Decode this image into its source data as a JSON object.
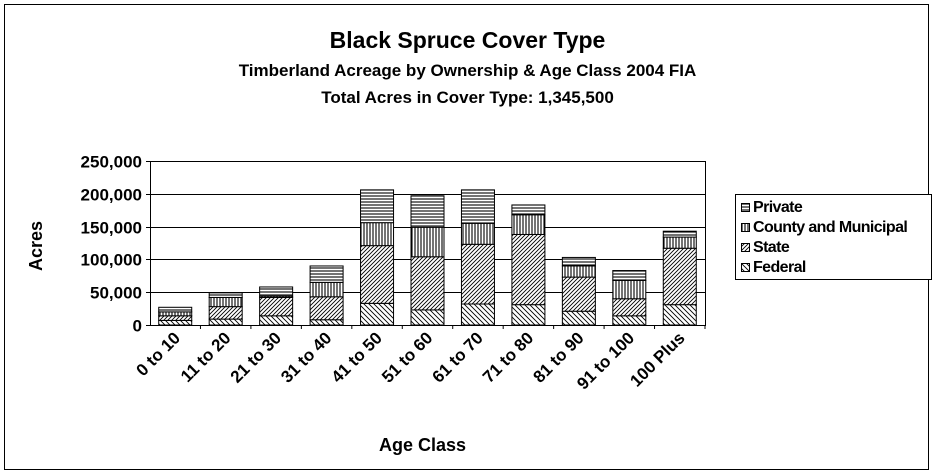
{
  "chart_data": {
    "type": "bar",
    "stacked": true,
    "title": "Black Spruce Cover Type",
    "subtitle": "Timberland Acreage by Ownership & Age Class 2004 FIA",
    "subtitle2": "Total Acres in Cover Type: 1,345,500",
    "xlabel": "Age Class",
    "ylabel": "Acres",
    "ylim": [
      0,
      250000
    ],
    "yticks": [
      0,
      50000,
      100000,
      150000,
      200000,
      250000
    ],
    "ytick_labels": [
      "0",
      "50,000",
      "100,000",
      "150,000",
      "200,000",
      "250,000"
    ],
    "grid": true,
    "legend_position": "right",
    "categories": [
      "0 to 10",
      "11 to 20",
      "21 to 30",
      "31 to 40",
      "41 to 50",
      "51 to 60",
      "61 to 70",
      "71 to 80",
      "81 to 90",
      "91 to 100",
      "100 Plus"
    ],
    "series": [
      {
        "name": "Federal",
        "pattern": "diagonal-down",
        "values": [
          7000,
          9000,
          14000,
          8000,
          33000,
          23000,
          32000,
          31000,
          21000,
          14000,
          31000
        ]
      },
      {
        "name": "State",
        "pattern": "diagonal-up",
        "values": [
          7000,
          19000,
          28000,
          35000,
          88000,
          81000,
          91000,
          107000,
          52000,
          26000,
          86000
        ]
      },
      {
        "name": "County and Municipal",
        "pattern": "vertical",
        "values": [
          6000,
          14000,
          2000,
          22000,
          35000,
          45000,
          32000,
          30000,
          17000,
          28000,
          17000
        ]
      },
      {
        "name": "Private",
        "pattern": "horizontal",
        "values": [
          7000,
          7000,
          14000,
          25000,
          50000,
          48000,
          51000,
          15000,
          13000,
          15000,
          9000
        ]
      }
    ],
    "legend_order": [
      "Private",
      "County and Municipal",
      "State",
      "Federal"
    ]
  }
}
